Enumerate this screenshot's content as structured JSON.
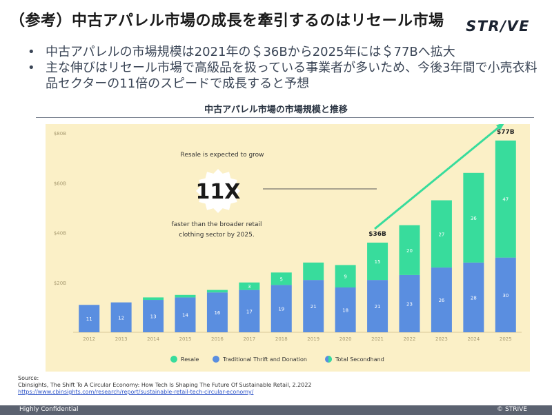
{
  "slide": {
    "title": "（参考）中古アパレル市場の成長を牽引するのはリセール市場",
    "logo": "STR/VE",
    "bullets": [
      "中古アパレルの市場規模は2021年の＄36Bから2025年には＄77Bへ拡大",
      "主な伸びはリセール市場で高級品を扱っている事業者が多いため、今後3年間で小売衣料品セクターの11倍のスピードで成長すると予想"
    ],
    "chart_heading": "中古アパレル市場の市場規模と推移",
    "source_label": "Source:",
    "source_text": "Cbinsights, The Shift To A Circular Economy: How Tech Is Shaping The Future Of Sustainable Retail, 2.2022",
    "source_url": "https://www.cbinsights.com/research/report/sustainable-retail-tech-circular-economy/",
    "footer_left": "Highly Confidential",
    "footer_right": "© STRIVE"
  },
  "chart_data": {
    "type": "bar",
    "stacked": true,
    "categories": [
      "2012",
      "2013",
      "2014",
      "2015",
      "2016",
      "2017",
      "2018",
      "2019",
      "2020",
      "2021",
      "2022",
      "2023",
      "2024",
      "2025"
    ],
    "series": [
      {
        "name": "Traditional Thrift and Donation",
        "color": "#5a8ee0",
        "values": [
          11,
          12,
          13,
          14,
          16,
          17,
          19,
          21,
          18,
          21,
          23,
          26,
          28,
          30
        ]
      },
      {
        "name": "Resale",
        "color": "#38dc9c",
        "values": [
          0,
          0,
          1,
          1,
          1,
          3,
          5,
          7,
          9,
          15,
          20,
          27,
          36,
          47
        ]
      }
    ],
    "segment_labels": {
      "Traditional Thrift and Donation": [
        "11",
        "12",
        "13",
        "14",
        "16",
        "17",
        "19",
        "21",
        "18",
        "21",
        "23",
        "26",
        "28",
        "30"
      ],
      "Resale": [
        "",
        "",
        "",
        "",
        "",
        "3",
        "5",
        "",
        "9",
        "15",
        "20",
        "27",
        "36",
        "47"
      ]
    },
    "legend_extra": "Total Secondhand",
    "yticks": [
      0,
      20,
      40,
      60,
      80
    ],
    "ytick_labels": [
      "",
      "$20B",
      "$40B",
      "$60B",
      "$80B"
    ],
    "ylim": [
      0,
      80
    ],
    "grid": false,
    "legend_position": "bottom",
    "annotations": {
      "callout_top": "Resale is expected to grow",
      "callout_big": "11X",
      "callout_bottom": "faster than the broader retail clothing sector by 2025.",
      "label_2021": "$36B",
      "label_2025": "$77B"
    },
    "colors": {
      "background": "#fbf0c7",
      "thrift": "#5a8ee0",
      "resale": "#38dc9c",
      "arrow": "#38dc9c"
    }
  }
}
